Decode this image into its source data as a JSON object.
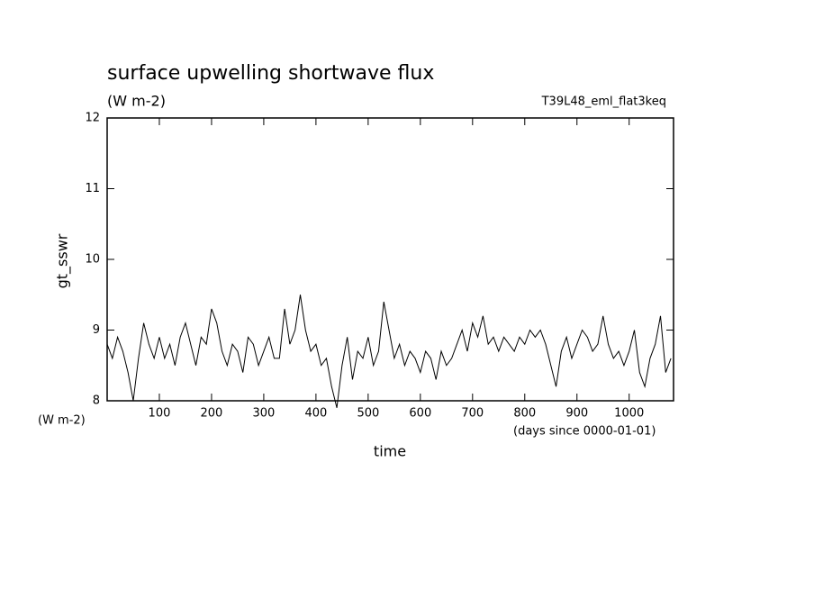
{
  "chart_data": {
    "type": "line",
    "title": "surface upwelling shortwave flux",
    "subtitle": "(W m-2)",
    "annotation": "T39L48_eml_flat3keq",
    "y_label": "gt_sswr",
    "y_unit": "(W m-2)",
    "x_label": "time",
    "x_unit": "(days since 0000-01-01)",
    "color": "#000000",
    "xlim": [
      0,
      1085
    ],
    "ylim": [
      8,
      12
    ],
    "xticks": [
      100,
      200,
      300,
      400,
      500,
      600,
      700,
      800,
      900,
      1000
    ],
    "yticks": [
      8,
      9,
      10,
      11,
      12
    ],
    "x": [
      0,
      10,
      20,
      30,
      40,
      50,
      60,
      70,
      80,
      90,
      100,
      110,
      120,
      130,
      140,
      150,
      160,
      170,
      180,
      190,
      200,
      210,
      220,
      230,
      240,
      250,
      260,
      270,
      280,
      290,
      300,
      310,
      320,
      330,
      340,
      350,
      360,
      370,
      380,
      390,
      400,
      410,
      420,
      430,
      440,
      450,
      460,
      470,
      480,
      490,
      500,
      510,
      520,
      530,
      540,
      550,
      560,
      570,
      580,
      590,
      600,
      610,
      620,
      630,
      640,
      650,
      660,
      670,
      680,
      690,
      700,
      710,
      720,
      730,
      740,
      750,
      760,
      770,
      780,
      790,
      800,
      810,
      820,
      830,
      840,
      850,
      860,
      870,
      880,
      890,
      900,
      910,
      920,
      930,
      940,
      950,
      960,
      970,
      980,
      990,
      1000,
      1010,
      1020,
      1030,
      1040,
      1050,
      1060,
      1070,
      1080
    ],
    "values": [
      8.8,
      8.6,
      8.9,
      8.7,
      8.4,
      8.0,
      8.6,
      9.1,
      8.8,
      8.6,
      8.9,
      8.6,
      8.8,
      8.5,
      8.9,
      9.1,
      8.8,
      8.5,
      8.9,
      8.8,
      9.3,
      9.1,
      8.7,
      8.5,
      8.8,
      8.7,
      8.4,
      8.9,
      8.8,
      8.5,
      8.7,
      8.9,
      8.6,
      8.6,
      9.3,
      8.8,
      9.0,
      9.5,
      9.0,
      8.7,
      8.8,
      8.5,
      8.6,
      8.2,
      7.9,
      8.5,
      8.9,
      8.3,
      8.7,
      8.6,
      8.9,
      8.5,
      8.7,
      9.4,
      9.0,
      8.6,
      8.8,
      8.5,
      8.7,
      8.6,
      8.4,
      8.7,
      8.6,
      8.3,
      8.7,
      8.5,
      8.6,
      8.8,
      9.0,
      8.7,
      9.1,
      8.9,
      9.2,
      8.8,
      8.9,
      8.7,
      8.9,
      8.8,
      8.7,
      8.9,
      8.8,
      9.0,
      8.9,
      9.0,
      8.8,
      8.5,
      8.2,
      8.7,
      8.9,
      8.6,
      8.8,
      9.0,
      8.9,
      8.7,
      8.8,
      9.2,
      8.8,
      8.6,
      8.7,
      8.5,
      8.7,
      9.0,
      8.4,
      8.2,
      8.6,
      8.8,
      9.2,
      8.4,
      8.6
    ]
  }
}
